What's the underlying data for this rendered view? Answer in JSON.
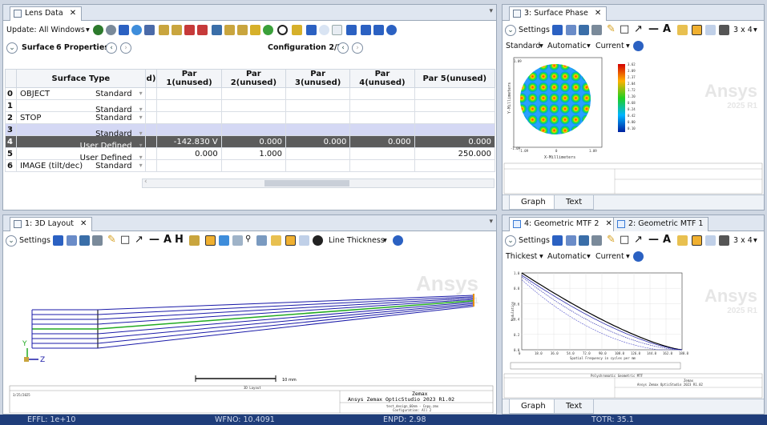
{
  "lens_data": {
    "tab_title": "Lens Data",
    "update_label": "Update: All Windows",
    "surface_label": "Surface",
    "properties_label": "6 Properties",
    "config_label": "Configuration 2/2",
    "columns": [
      "Surface Type",
      "d)",
      "Par 1(unused)",
      "Par 2(unused)",
      "Par 3(unused)",
      "Par 4(unused)",
      "Par 5(unused)"
    ],
    "rows": [
      {
        "num": "0",
        "name": "OBJECT",
        "type": "Standard",
        "p1": "",
        "p1flag": "",
        "p2": "",
        "p3": "",
        "p4": "",
        "p5": ""
      },
      {
        "num": "1",
        "name": "",
        "type": "Standard",
        "p1": "",
        "p1flag": "",
        "p2": "",
        "p3": "",
        "p4": "",
        "p5": ""
      },
      {
        "num": "2",
        "name": "STOP",
        "type": "Standard",
        "p1": "",
        "p1flag": "",
        "p2": "",
        "p3": "",
        "p4": "",
        "p5": ""
      },
      {
        "num": "3",
        "name": "",
        "type": "Standard",
        "p1": "",
        "p1flag": "",
        "p2": "",
        "p3": "",
        "p4": "",
        "p5": ""
      },
      {
        "num": "4",
        "name": "",
        "type": "User Defined",
        "p1": "-142.830",
        "p1flag": "V",
        "p2": "0.000",
        "p3": "0.000",
        "p4": "0.000",
        "p5": "0.000"
      },
      {
        "num": "5",
        "name": "",
        "type": "User Defined",
        "p1": "0.000",
        "p1flag": "",
        "p2": "1.000",
        "p3": "",
        "p4": "",
        "p5": "250.000"
      },
      {
        "num": "6",
        "name": "IMAGE (tilt/dec)",
        "type": "Standard",
        "p1": "",
        "p1flag": "",
        "p2": "",
        "p3": "",
        "p4": "",
        "p5": ""
      }
    ]
  },
  "surface_phase": {
    "tab_title": "3: Surface Phase",
    "settings_label": "Settings",
    "grid_label": "3 x 4",
    "dd1": "Standard",
    "dd2": "Automatic",
    "dd3": "Current",
    "scale_labels": [
      "3.62",
      "3.09",
      "2.37",
      "2.04",
      "1.72",
      "1.20",
      "0.68",
      "0.24",
      "0.42",
      "0.80",
      "0.10"
    ],
    "ylabel": "Y-Millimeters",
    "xlabel": "X-Millimeters",
    "ytick_top": "1.09",
    "ytick_bottom": "-1.09",
    "xtick_left": "-1.09",
    "xtick_mid": "0",
    "xtick_right": "1.09",
    "watermark_brand": "Ansys",
    "watermark_version": "2025 R1",
    "bottom_tabs": [
      "Graph",
      "Text"
    ]
  },
  "layout3d": {
    "tab_title": "1: 3D Layout",
    "settings_label": "Settings",
    "line_thickness_label": "Line Thickness",
    "scale_label": "10 mm",
    "footer_title": "3D Layout",
    "footer_date": "3/25/2025",
    "footer_brand": "Zemax",
    "footer_product": "Ansys Zemax OpticStudio 2023 R1.02",
    "footer_file": "test_design_60nm - Copy.zmx",
    "footer_config": "Configuration: All 2",
    "axis_y": "Y",
    "axis_z": "Z",
    "watermark_brand": "Ansys",
    "watermark_version": "2025 R1"
  },
  "mtf": {
    "tab1": "4: Geometric MTF 2",
    "tab2": "2: Geometric MTF 1",
    "settings_label": "Settings",
    "grid_label": "3 x 4",
    "dd1": "Thickest",
    "dd2": "Automatic",
    "dd3": "Current",
    "ylabel": "Modulation",
    "xlabel": "Spatial Frequency in cycles per mm",
    "xticks": [
      "0",
      "18.0",
      "36.0",
      "54.0",
      "72.0",
      "90.0",
      "108.0",
      "126.0",
      "144.0",
      "162.0",
      "180.0"
    ],
    "yticks": [
      "1.0",
      "0.8",
      "0.6",
      "0.4",
      "0.2",
      "0.0"
    ],
    "footer_title": "Polychromatic Geometric MTF",
    "footer_brand": "Zemax",
    "footer_product": "Ansys Zemax OpticStudio 2023 R1.02",
    "watermark_brand": "Ansys",
    "watermark_version": "2025 R1",
    "bottom_tabs": [
      "Graph",
      "Text"
    ]
  },
  "status": {
    "efl": "EFFL: 1e+10",
    "wfno": "WFNO: 10.4091",
    "enpd": "ENPD: 2.98",
    "totr": "TOTR: 35.1"
  },
  "colors": {
    "ray_blue": "#1a1aa8",
    "ray_green": "#22aa22",
    "status_bg": "#1f3d7a",
    "selected_row": "#d4d8f4"
  }
}
